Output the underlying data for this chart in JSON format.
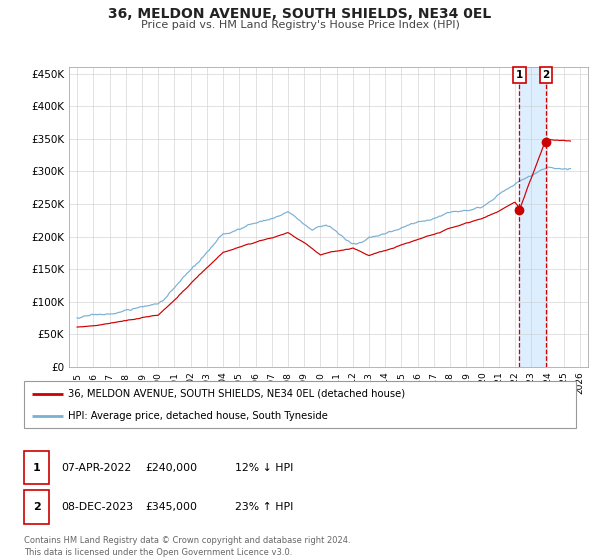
{
  "title": "36, MELDON AVENUE, SOUTH SHIELDS, NE34 0EL",
  "subtitle": "Price paid vs. HM Land Registry's House Price Index (HPI)",
  "legend_line1": "36, MELDON AVENUE, SOUTH SHIELDS, NE34 0EL (detached house)",
  "legend_line2": "HPI: Average price, detached house, South Tyneside",
  "footer1": "Contains HM Land Registry data © Crown copyright and database right 2024.",
  "footer2": "This data is licensed under the Open Government Licence v3.0.",
  "transaction1_date": "07-APR-2022",
  "transaction1_price": "£240,000",
  "transaction1_hpi": "12% ↓ HPI",
  "transaction2_date": "08-DEC-2023",
  "transaction2_price": "£345,000",
  "transaction2_hpi": "23% ↑ HPI",
  "price_color": "#cc0000",
  "hpi_color": "#7ab0d4",
  "highlight_color": "#ddeeff",
  "marker1_x": 2022.27,
  "marker1_y": 240000,
  "marker2_x": 2023.92,
  "marker2_y": 345000,
  "vline1_x": 2022.27,
  "vline2_x": 2023.92,
  "xlim": [
    1994.5,
    2026.5
  ],
  "ylim": [
    0,
    460000
  ],
  "yticks": [
    0,
    50000,
    100000,
    150000,
    200000,
    250000,
    300000,
    350000,
    400000,
    450000
  ],
  "ytick_labels": [
    "£0",
    "£50K",
    "£100K",
    "£150K",
    "£200K",
    "£250K",
    "£300K",
    "£350K",
    "£400K",
    "£450K"
  ],
  "xtick_years": [
    1995,
    1996,
    1997,
    1998,
    1999,
    2000,
    2001,
    2002,
    2003,
    2004,
    2005,
    2006,
    2007,
    2008,
    2009,
    2010,
    2011,
    2012,
    2013,
    2014,
    2015,
    2016,
    2017,
    2018,
    2019,
    2020,
    2021,
    2022,
    2023,
    2024,
    2025,
    2026
  ]
}
